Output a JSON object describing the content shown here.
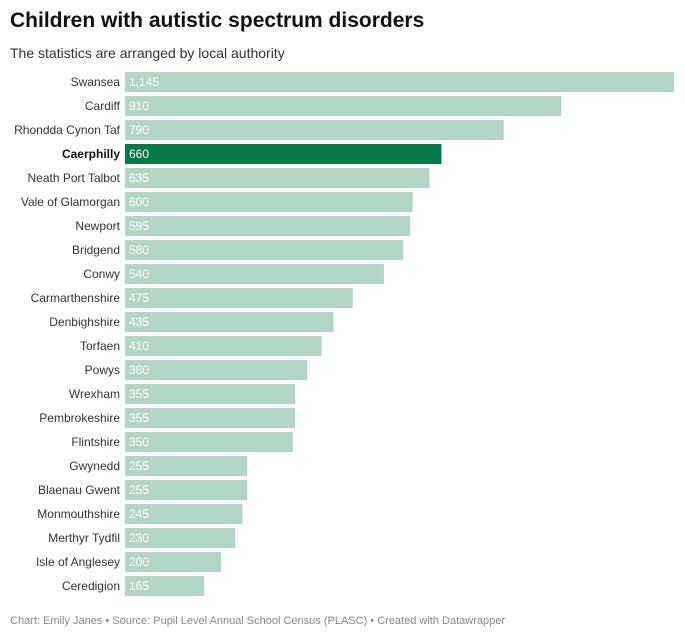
{
  "title": "Children with autistic spectrum disorders",
  "subtitle": "The statistics are arranged by local authority",
  "footer": "Chart: Emily Janes • Source: Pupil Level Annual School Census (PLASC) • Created with Datawrapper",
  "chart_data": {
    "type": "bar",
    "orientation": "horizontal",
    "categories": [
      "Swansea",
      "Cardiff",
      "Rhondda Cynon Taf",
      "Caerphilly",
      "Neath Port Talbot",
      "Vale of Glamorgan",
      "Newport",
      "Bridgend",
      "Conwy",
      "Carmarthenshire",
      "Denbighshire",
      "Torfaen",
      "Powys",
      "Wrexham",
      "Pembrokeshire",
      "Flintshire",
      "Gwynedd",
      "Blaenau Gwent",
      "Monmouthshire",
      "Merthyr Tydfil",
      "Isle of Anglesey",
      "Ceredigion"
    ],
    "values": [
      1145,
      910,
      790,
      660,
      635,
      600,
      595,
      580,
      540,
      475,
      435,
      410,
      380,
      355,
      355,
      350,
      255,
      255,
      245,
      230,
      200,
      165
    ],
    "value_labels": [
      "1,145",
      "910",
      "790",
      "660",
      "635",
      "600",
      "595",
      "580",
      "540",
      "475",
      "435",
      "410",
      "380",
      "355",
      "355",
      "350",
      "255",
      "255",
      "245",
      "230",
      "200",
      "165"
    ],
    "highlight": "Caerphilly",
    "xlim": [
      0,
      1145
    ],
    "grid": false,
    "colors": {
      "bar": "#b3d5c5",
      "highlight": "#07784a"
    }
  }
}
